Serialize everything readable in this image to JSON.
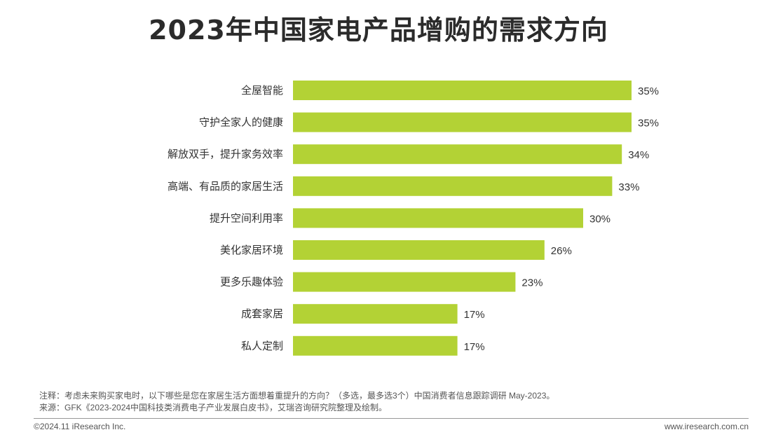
{
  "title": "2023年中国家电产品增购的需求方向",
  "chart_data": {
    "type": "bar",
    "orientation": "horizontal",
    "title": "2023年中国家电产品增购的需求方向",
    "categories": [
      "全屋智能",
      "守护全家人的健康",
      "解放双手，提升家务效率",
      "高端、有品质的家居生活",
      "提升空间利用率",
      "美化家居环境",
      "更多乐趣体验",
      "成套家居",
      "私人定制"
    ],
    "values": [
      35,
      35,
      34,
      33,
      30,
      26,
      23,
      17,
      17
    ],
    "data_labels": [
      "35%",
      "35%",
      "34%",
      "33%",
      "30%",
      "26%",
      "23%",
      "17%",
      "17%"
    ],
    "unit": "%",
    "xlim": [
      0,
      35
    ],
    "grid": false,
    "legend": "none",
    "bar_color": "#b3d235"
  },
  "notes": {
    "note": "注释：考虑未来购买家电时，以下哪些是您在家居生活方面想着重提升的方向？（多选，最多选3个）中国消费者信息跟踪调研 May-2023。",
    "source": "来源：GFK《2023-2024中国科技类消费电子产业发展白皮书》，艾瑞咨询研究院整理及绘制。"
  },
  "footer": {
    "copyright": "©2024.11 iResearch Inc.",
    "website": "www.iresearch.com.cn"
  }
}
